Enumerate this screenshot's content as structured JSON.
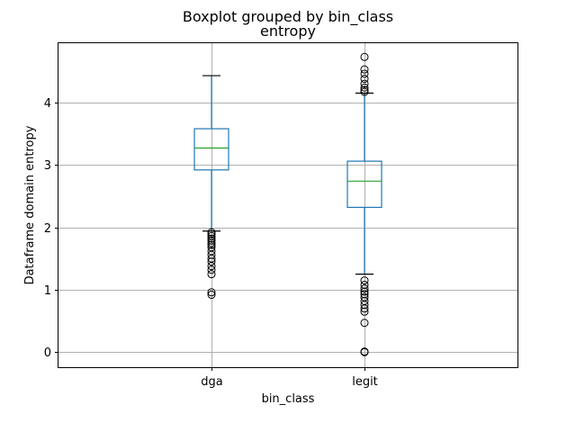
{
  "chart_data": {
    "type": "boxplot",
    "suptitle": "Boxplot grouped by bin_class",
    "title": "entropy",
    "xlabel": "bin_class",
    "ylabel": "Dataframe domain entropy",
    "categories": [
      "dga",
      "legit"
    ],
    "ylim": [
      -0.24,
      4.95
    ],
    "yticks": [
      0,
      1,
      2,
      3,
      4
    ],
    "grid": true,
    "colors": {
      "box": "#1f77b4",
      "median": "#2ca02c",
      "whisker": "#1f77b4",
      "cap": "#000000",
      "grid": "#b0b0b0",
      "flier": "#000000"
    },
    "boxes": [
      {
        "name": "dga",
        "q1": 2.92,
        "median": 3.27,
        "q3": 3.58,
        "whisker_low": 1.94,
        "whisker_high": 4.43,
        "fliers": [
          1.92,
          1.89,
          1.86,
          1.82,
          1.79,
          1.75,
          1.72,
          1.68,
          1.62,
          1.56,
          1.5,
          1.45,
          1.38,
          1.32,
          1.25,
          0.96,
          0.92
        ]
      },
      {
        "name": "legit",
        "q1": 2.32,
        "median": 2.74,
        "q3": 3.06,
        "whisker_low": 1.25,
        "whisker_high": 4.15,
        "fliers": [
          4.73,
          4.53,
          4.46,
          4.38,
          4.3,
          4.24,
          4.2,
          4.17,
          1.15,
          1.08,
          1.02,
          0.97,
          0.93,
          0.88,
          0.82,
          0.76,
          0.7,
          0.65,
          0.47,
          0.01,
          0.0
        ]
      }
    ]
  }
}
